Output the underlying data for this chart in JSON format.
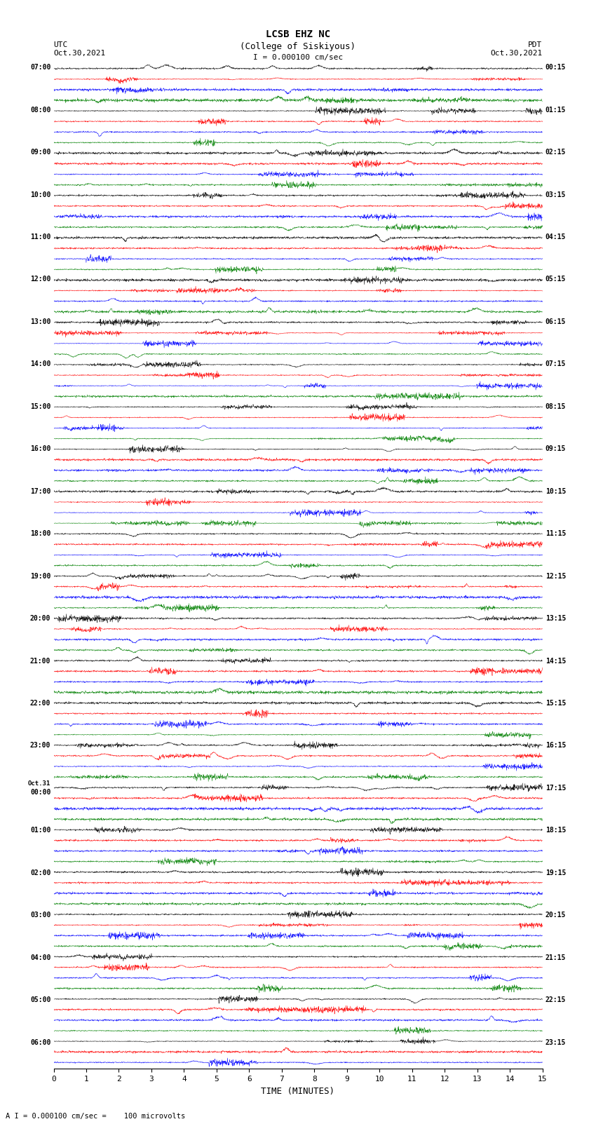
{
  "title_line1": "LCSB EHZ NC",
  "title_line2": "(College of Siskiyous)",
  "scale_text": "I = 0.000100 cm/sec",
  "bottom_text": "A I = 0.000100 cm/sec =    100 microvolts",
  "bg_color": "#ffffff",
  "trace_colors": [
    "black",
    "red",
    "blue",
    "green"
  ],
  "figwidth": 8.5,
  "figheight": 16.13,
  "dpi": 100,
  "utc_times": [
    "07:00",
    "",
    "",
    "",
    "08:00",
    "",
    "",
    "",
    "09:00",
    "",
    "",
    "",
    "10:00",
    "",
    "",
    "",
    "11:00",
    "",
    "",
    "",
    "12:00",
    "",
    "",
    "",
    "13:00",
    "",
    "",
    "",
    "14:00",
    "",
    "",
    "",
    "15:00",
    "",
    "",
    "",
    "16:00",
    "",
    "",
    "",
    "17:00",
    "",
    "",
    "",
    "18:00",
    "",
    "",
    "",
    "19:00",
    "",
    "",
    "",
    "20:00",
    "",
    "",
    "",
    "21:00",
    "",
    "",
    "",
    "22:00",
    "",
    "",
    "",
    "23:00",
    "",
    "",
    "",
    "Oct.31\n00:00",
    "",
    "",
    "",
    "01:00",
    "",
    "",
    "",
    "02:00",
    "",
    "",
    "",
    "03:00",
    "",
    "",
    "",
    "04:00",
    "",
    "",
    "",
    "05:00",
    "",
    "",
    "",
    "06:00",
    "",
    ""
  ],
  "pdt_times": [
    "00:15",
    "",
    "",
    "",
    "01:15",
    "",
    "",
    "",
    "02:15",
    "",
    "",
    "",
    "03:15",
    "",
    "",
    "",
    "04:15",
    "",
    "",
    "",
    "05:15",
    "",
    "",
    "",
    "06:15",
    "",
    "",
    "",
    "07:15",
    "",
    "",
    "",
    "08:15",
    "",
    "",
    "",
    "09:15",
    "",
    "",
    "",
    "10:15",
    "",
    "",
    "",
    "11:15",
    "",
    "",
    "",
    "12:15",
    "",
    "",
    "",
    "13:15",
    "",
    "",
    "",
    "14:15",
    "",
    "",
    "",
    "15:15",
    "",
    "",
    "",
    "16:15",
    "",
    "",
    "",
    "17:15",
    "",
    "",
    "",
    "18:15",
    "",
    "",
    "",
    "19:15",
    "",
    "",
    "",
    "20:15",
    "",
    "",
    "",
    "21:15",
    "",
    "",
    "",
    "22:15",
    "",
    "",
    "",
    "23:15",
    "",
    ""
  ],
  "xmin": 0,
  "xmax": 15,
  "xticks": [
    0,
    1,
    2,
    3,
    4,
    5,
    6,
    7,
    8,
    9,
    10,
    11,
    12,
    13,
    14,
    15
  ]
}
